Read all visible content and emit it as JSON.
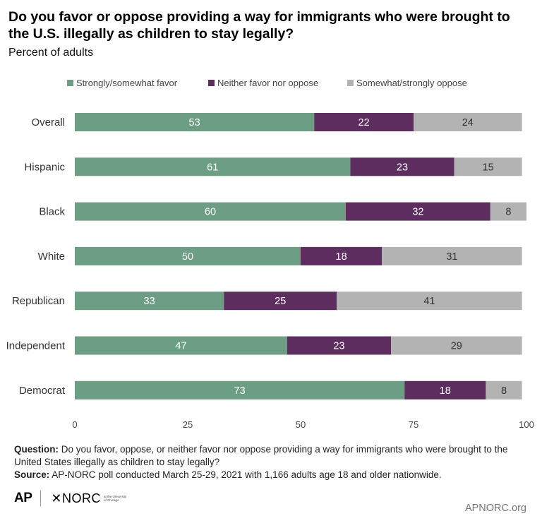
{
  "title": "Do you favor or oppose providing a way for immigrants who were brought to the U.S. illegally as children to stay legally?",
  "subtitle": "Percent of adults",
  "colors": {
    "favor": "#6b9e82",
    "neither": "#5e2d5f",
    "oppose": "#b3b3b3"
  },
  "chart_data": {
    "type": "bar",
    "orientation": "horizontal",
    "stacked": true,
    "categories": [
      "Overall",
      "Hispanic",
      "Black",
      "White",
      "Republican",
      "Independent",
      "Democrat"
    ],
    "series": [
      {
        "name": "Strongly/somewhat favor",
        "values": [
          53,
          61,
          60,
          50,
          33,
          47,
          73
        ]
      },
      {
        "name": "Neither favor nor oppose",
        "values": [
          22,
          23,
          32,
          18,
          25,
          23,
          18
        ]
      },
      {
        "name": "Somewhat/strongly oppose",
        "values": [
          24,
          15,
          8,
          31,
          41,
          29,
          8
        ]
      }
    ],
    "xticks": [
      "0",
      "25",
      "50",
      "75",
      "100"
    ],
    "xlim": [
      0,
      100
    ],
    "legend_position": "top",
    "grid": false
  },
  "footer": {
    "question_label": "Question:",
    "question_text": "Do you favor, oppose, or neither favor nor oppose providing a way for immigrants who were brought to the United States illegally as children to stay legally?",
    "source_label": "Source:",
    "source_text": "AP-NORC poll conducted March 25-29, 2021 with 1,166 adults age 18 and older nationwide."
  },
  "logos": {
    "ap": "AP",
    "norc": "✕NORC",
    "norc_sub": "at the University of Chicago"
  },
  "site": "APNORC.org"
}
